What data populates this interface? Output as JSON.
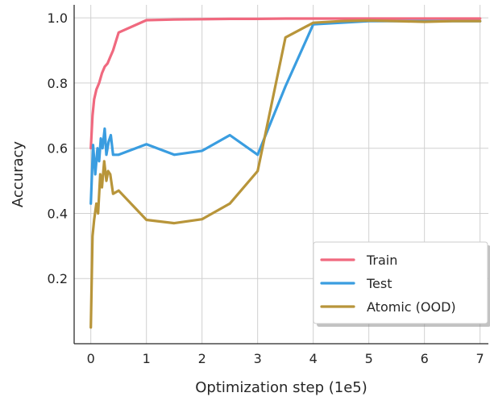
{
  "chart_data": {
    "type": "line",
    "title": "",
    "xlabel": "Optimization step (1e5)",
    "ylabel": "Accuracy",
    "xlim": [
      -0.3,
      7.15
    ],
    "ylim": [
      0.0,
      1.04
    ],
    "xticks": [
      0,
      1,
      2,
      3,
      4,
      5,
      6,
      7
    ],
    "xtick_labels": [
      "0",
      "1",
      "2",
      "3",
      "4",
      "5",
      "6",
      "7"
    ],
    "yticks": [
      0.2,
      0.4,
      0.6,
      0.8,
      1.0
    ],
    "ytick_labels": [
      "0.2",
      "0.4",
      "0.6",
      "0.8",
      "1.0"
    ],
    "grid": true,
    "legend_position": "bottom-right",
    "series": [
      {
        "name": "Train",
        "color": "#f0697f",
        "x": [
          0.0,
          0.03,
          0.06,
          0.1,
          0.15,
          0.2,
          0.25,
          0.3,
          0.35,
          0.4,
          0.5,
          1.0,
          1.5,
          2.0,
          2.5,
          3.0,
          3.5,
          4.0,
          4.5,
          5.0,
          5.5,
          6.0,
          6.5,
          7.0
        ],
        "y": [
          0.6,
          0.7,
          0.75,
          0.78,
          0.8,
          0.83,
          0.85,
          0.86,
          0.88,
          0.9,
          0.955,
          0.993,
          0.995,
          0.996,
          0.997,
          0.997,
          0.998,
          0.998,
          0.998,
          0.998,
          0.998,
          0.998,
          0.998,
          0.998
        ]
      },
      {
        "name": "Test",
        "color": "#3a9de0",
        "x": [
          0.0,
          0.04,
          0.08,
          0.12,
          0.15,
          0.18,
          0.21,
          0.25,
          0.28,
          0.32,
          0.36,
          0.4,
          0.5,
          1.0,
          1.5,
          2.0,
          2.5,
          3.0,
          3.5,
          4.0,
          4.5,
          5.0,
          5.5,
          6.0,
          6.5,
          7.0
        ],
        "y": [
          0.43,
          0.61,
          0.52,
          0.6,
          0.56,
          0.63,
          0.6,
          0.66,
          0.58,
          0.62,
          0.64,
          0.58,
          0.58,
          0.612,
          0.58,
          0.592,
          0.64,
          0.58,
          0.79,
          0.98,
          0.985,
          0.99,
          0.99,
          0.99,
          0.99,
          0.99
        ]
      },
      {
        "name": "Atomic (OOD)",
        "color": "#b8953a",
        "x": [
          0.0,
          0.03,
          0.06,
          0.1,
          0.13,
          0.17,
          0.2,
          0.24,
          0.28,
          0.31,
          0.35,
          0.4,
          0.5,
          1.0,
          1.5,
          2.0,
          2.5,
          3.0,
          3.5,
          4.0,
          4.5,
          5.0,
          5.5,
          6.0,
          6.5,
          7.0
        ],
        "y": [
          0.05,
          0.33,
          0.38,
          0.43,
          0.4,
          0.52,
          0.48,
          0.56,
          0.5,
          0.53,
          0.52,
          0.46,
          0.47,
          0.38,
          0.37,
          0.382,
          0.43,
          0.53,
          0.94,
          0.985,
          0.99,
          0.992,
          0.99,
          0.988,
          0.99,
          0.99
        ]
      }
    ]
  }
}
